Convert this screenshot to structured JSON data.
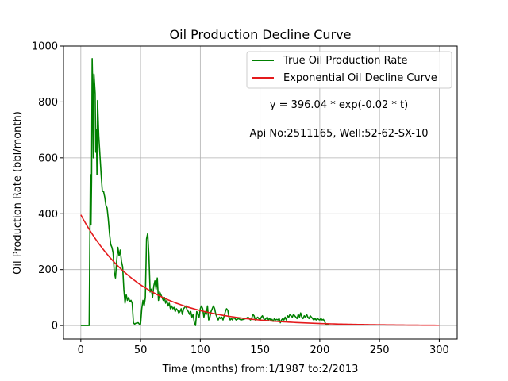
{
  "chart_data": {
    "type": "line",
    "title": "Oil Production Decline Curve",
    "xlabel": "Time (months) from:1/1987 to:2/2013",
    "ylabel": "Oil Production Rate (bbl/month)",
    "xlim": [
      -14.5,
      315
    ],
    "ylim": [
      -48,
      1000
    ],
    "xticks": [
      0,
      50,
      100,
      150,
      200,
      250,
      300
    ],
    "yticks": [
      0,
      200,
      400,
      600,
      800,
      1000
    ],
    "grid": true,
    "legend_position": "top-right",
    "annotations": [
      "y = 396.04 * exp(-0.02 * t)",
      "Api No:2511165, Well:52-62-SX-10"
    ],
    "series": [
      {
        "name": "True Oil Production Rate",
        "color": "#008000",
        "points": [
          [
            0,
            0
          ],
          [
            3,
            0
          ],
          [
            6,
            0
          ],
          [
            7,
            0
          ],
          [
            8,
            540
          ],
          [
            8.5,
            360
          ],
          [
            9,
            520
          ],
          [
            9.5,
            955
          ],
          [
            10,
            840
          ],
          [
            10.5,
            600
          ],
          [
            11,
            900
          ],
          [
            12,
            830
          ],
          [
            12.5,
            620
          ],
          [
            13,
            700
          ],
          [
            13.5,
            540
          ],
          [
            14,
            805
          ],
          [
            15,
            680
          ],
          [
            16,
            610
          ],
          [
            17,
            540
          ],
          [
            18,
            480
          ],
          [
            19,
            480
          ],
          [
            20,
            460
          ],
          [
            21,
            430
          ],
          [
            22,
            420
          ],
          [
            23,
            380
          ],
          [
            24,
            330
          ],
          [
            25,
            290
          ],
          [
            26,
            280
          ],
          [
            27,
            260
          ],
          [
            28,
            190
          ],
          [
            29,
            170
          ],
          [
            30,
            230
          ],
          [
            31,
            280
          ],
          [
            32,
            250
          ],
          [
            33,
            270
          ],
          [
            34,
            230
          ],
          [
            35,
            210
          ],
          [
            36,
            130
          ],
          [
            37,
            80
          ],
          [
            38,
            110
          ],
          [
            39,
            90
          ],
          [
            40,
            100
          ],
          [
            41,
            85
          ],
          [
            42,
            90
          ],
          [
            43,
            80
          ],
          [
            44,
            10
          ],
          [
            45,
            5
          ],
          [
            46,
            8
          ],
          [
            48,
            10
          ],
          [
            49,
            5
          ],
          [
            50,
            5
          ],
          [
            51,
            60
          ],
          [
            52,
            90
          ],
          [
            53,
            70
          ],
          [
            54,
            100
          ],
          [
            55,
            310
          ],
          [
            56,
            330
          ],
          [
            57,
            250
          ],
          [
            58,
            120
          ],
          [
            59,
            130
          ],
          [
            60,
            100
          ],
          [
            61,
            140
          ],
          [
            62,
            160
          ],
          [
            63,
            130
          ],
          [
            64,
            170
          ],
          [
            65,
            90
          ],
          [
            66,
            120
          ],
          [
            67,
            110
          ],
          [
            68,
            100
          ],
          [
            69,
            90
          ],
          [
            70,
            100
          ],
          [
            71,
            80
          ],
          [
            72,
            90
          ],
          [
            73,
            70
          ],
          [
            74,
            80
          ],
          [
            75,
            60
          ],
          [
            76,
            70
          ],
          [
            77,
            60
          ],
          [
            78,
            65
          ],
          [
            79,
            50
          ],
          [
            80,
            60
          ],
          [
            81,
            55
          ],
          [
            82,
            45
          ],
          [
            83,
            50
          ],
          [
            84,
            60
          ],
          [
            85,
            40
          ],
          [
            86,
            60
          ],
          [
            88,
            70
          ],
          [
            89,
            55
          ],
          [
            90,
            50
          ],
          [
            91,
            40
          ],
          [
            92,
            50
          ],
          [
            93,
            30
          ],
          [
            94,
            40
          ],
          [
            95,
            10
          ],
          [
            96,
            0
          ],
          [
            97,
            50
          ],
          [
            98,
            40
          ],
          [
            99,
            30
          ],
          [
            100,
            60
          ],
          [
            101,
            70
          ],
          [
            102,
            60
          ],
          [
            103,
            30
          ],
          [
            104,
            50
          ],
          [
            105,
            40
          ],
          [
            106,
            70
          ],
          [
            107,
            20
          ],
          [
            108,
            30
          ],
          [
            109,
            50
          ],
          [
            110,
            60
          ],
          [
            111,
            70
          ],
          [
            112,
            60
          ],
          [
            113,
            40
          ],
          [
            114,
            30
          ],
          [
            115,
            20
          ],
          [
            116,
            30
          ],
          [
            117,
            25
          ],
          [
            118,
            30
          ],
          [
            119,
            20
          ],
          [
            120,
            35
          ],
          [
            121,
            50
          ],
          [
            122,
            60
          ],
          [
            123,
            55
          ],
          [
            124,
            30
          ],
          [
            125,
            20
          ],
          [
            126,
            25
          ],
          [
            127,
            20
          ],
          [
            128,
            30
          ],
          [
            129,
            25
          ],
          [
            130,
            20
          ],
          [
            132,
            25
          ],
          [
            134,
            20
          ],
          [
            136,
            22
          ],
          [
            138,
            25
          ],
          [
            140,
            30
          ],
          [
            141,
            25
          ],
          [
            142,
            20
          ],
          [
            143,
            25
          ],
          [
            144,
            40
          ],
          [
            145,
            35
          ],
          [
            146,
            20
          ],
          [
            147,
            25
          ],
          [
            148,
            30
          ],
          [
            149,
            25
          ],
          [
            150,
            20
          ],
          [
            151,
            30
          ],
          [
            152,
            35
          ],
          [
            153,
            25
          ],
          [
            154,
            20
          ],
          [
            155,
            25
          ],
          [
            156,
            30
          ],
          [
            157,
            20
          ],
          [
            158,
            25
          ],
          [
            159,
            20
          ],
          [
            160,
            22
          ],
          [
            161,
            15
          ],
          [
            162,
            25
          ],
          [
            163,
            20
          ],
          [
            164,
            22
          ],
          [
            165,
            20
          ],
          [
            166,
            25
          ],
          [
            167,
            10
          ],
          [
            168,
            20
          ],
          [
            169,
            25
          ],
          [
            170,
            20
          ],
          [
            171,
            30
          ],
          [
            172,
            20
          ],
          [
            173,
            35
          ],
          [
            174,
            30
          ],
          [
            175,
            40
          ],
          [
            176,
            35
          ],
          [
            177,
            30
          ],
          [
            178,
            40
          ],
          [
            179,
            35
          ],
          [
            180,
            30
          ],
          [
            181,
            25
          ],
          [
            182,
            40
          ],
          [
            183,
            30
          ],
          [
            184,
            45
          ],
          [
            185,
            30
          ],
          [
            186,
            25
          ],
          [
            187,
            35
          ],
          [
            188,
            30
          ],
          [
            189,
            40
          ],
          [
            190,
            30
          ],
          [
            191,
            25
          ],
          [
            192,
            35
          ],
          [
            193,
            30
          ],
          [
            194,
            25
          ],
          [
            195,
            20
          ],
          [
            196,
            25
          ],
          [
            197,
            20
          ],
          [
            198,
            25
          ],
          [
            199,
            22
          ],
          [
            200,
            20
          ],
          [
            201,
            25
          ],
          [
            202,
            20
          ],
          [
            203,
            22
          ],
          [
            204,
            15
          ],
          [
            205,
            5
          ],
          [
            206,
            2
          ],
          [
            207,
            5
          ],
          [
            208,
            0
          ]
        ]
      },
      {
        "name": "Exponential Oil Decline Curve",
        "color": "#e41a1c",
        "model": {
          "a": 396.04,
          "b": 0.02,
          "x_start": 0,
          "x_end": 300
        }
      }
    ]
  }
}
